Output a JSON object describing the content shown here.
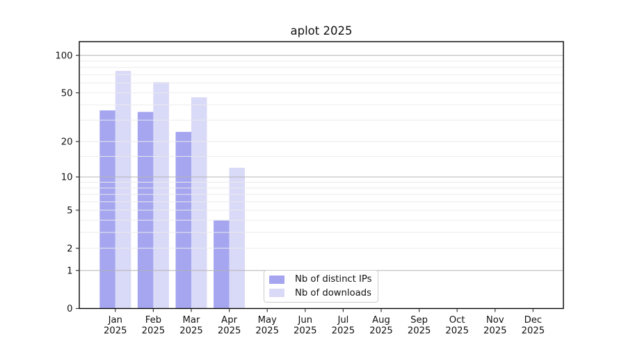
{
  "figure": {
    "title": "aplot 2025"
  },
  "chart_data": {
    "type": "bar",
    "title": "aplot 2025",
    "xlabel": "",
    "ylabel": "",
    "x": {
      "categories": [
        "Jan",
        "Feb",
        "Mar",
        "Apr",
        "May",
        "Jun",
        "Jul",
        "Aug",
        "Sep",
        "Oct",
        "Nov",
        "Dec"
      ],
      "year_label": "2025"
    },
    "y": {
      "scale": "log1p",
      "tick_labels": [
        0,
        1,
        2,
        5,
        10,
        20,
        50,
        100
      ],
      "major_gridlines": [
        1,
        10,
        100
      ],
      "minor_gridlines": [
        2,
        3,
        4,
        5,
        6,
        7,
        8,
        9,
        15,
        20,
        30,
        40,
        50,
        60,
        70,
        80,
        90
      ],
      "ylim_bottom": 0,
      "ylim_top_approx": 130,
      "grid": "on"
    },
    "series": [
      {
        "name": "Nb of distinct IPs",
        "color": "#a5a5f0",
        "values": [
          36,
          35,
          24,
          4,
          0,
          0,
          0,
          0,
          0,
          0,
          0,
          0
        ]
      },
      {
        "name": "Nb of downloads",
        "color": "#d9d9f8",
        "values": [
          75,
          61,
          46,
          12,
          0,
          0,
          0,
          0,
          0,
          0,
          0,
          0
        ]
      }
    ],
    "legend": {
      "position": "lower center inside plot"
    }
  },
  "colors": {
    "background": "#ffffff",
    "spine": "#000000",
    "tick": "#333333",
    "text": "#111111",
    "major_grid": "#b4b4b4",
    "minor_grid": "#ebebeb",
    "legend_border": "#cccccc"
  }
}
